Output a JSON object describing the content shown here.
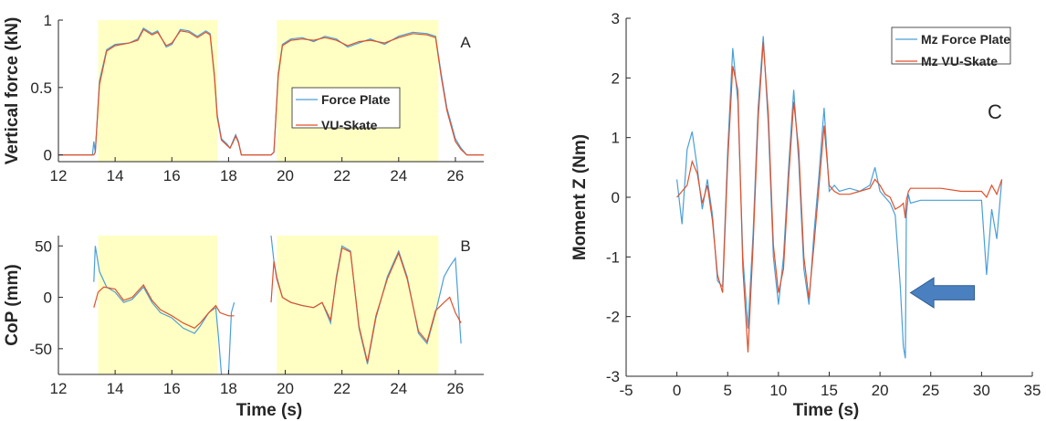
{
  "colors": {
    "force_plate": "#4a9fd8",
    "vu_skate": "#e0502a",
    "highlight": "#ffffc4",
    "arrow": "#4a80c0"
  },
  "chart_data": [
    {
      "id": "A",
      "type": "line",
      "panel_label": "A",
      "ylabel": "Vertical force (kN)",
      "xlim": [
        12,
        27
      ],
      "ylim": [
        -0.05,
        1
      ],
      "xticks": [
        "12",
        "14",
        "16",
        "18",
        "20",
        "22",
        "24",
        "26"
      ],
      "yticks": [
        "0",
        "0.5",
        "1"
      ],
      "highlight_intervals": [
        [
          13.4,
          17.6
        ],
        [
          19.7,
          25.4
        ]
      ],
      "legend": {
        "entries": [
          "Force Plate",
          "VU-Skate"
        ],
        "placement": "center-right"
      },
      "series": [
        {
          "name": "Force Plate",
          "x": [
            12,
            13.2,
            13.25,
            13.3,
            13.45,
            13.7,
            14.0,
            14.5,
            14.8,
            15.0,
            15.3,
            15.5,
            15.8,
            16.0,
            16.3,
            16.6,
            16.9,
            17.2,
            17.35,
            17.5,
            17.6,
            17.75,
            17.85,
            17.95,
            18.05,
            18.15,
            18.25,
            18.35,
            18.45,
            18.6,
            19.0,
            19.5,
            19.6,
            19.75,
            19.9,
            20.2,
            20.6,
            21.0,
            21.4,
            21.8,
            22.2,
            22.6,
            23.0,
            23.5,
            24.0,
            24.5,
            25.0,
            25.3,
            25.5,
            25.7,
            26.0,
            26.2,
            26.4,
            27
          ],
          "y": [
            0,
            0,
            0.1,
            0.02,
            0.55,
            0.78,
            0.82,
            0.83,
            0.86,
            0.94,
            0.9,
            0.92,
            0.8,
            0.82,
            0.93,
            0.92,
            0.88,
            0.92,
            0.9,
            0.6,
            0.3,
            0.12,
            0.1,
            0.08,
            0.05,
            0.1,
            0.15,
            0.1,
            0.0,
            0.0,
            0.0,
            0.0,
            0.02,
            0.6,
            0.82,
            0.86,
            0.87,
            0.84,
            0.88,
            0.86,
            0.8,
            0.83,
            0.86,
            0.82,
            0.88,
            0.91,
            0.9,
            0.88,
            0.6,
            0.35,
            0.12,
            0.05,
            0.0,
            0.0
          ]
        },
        {
          "name": "VU-Skate",
          "x": [
            12,
            13.25,
            13.3,
            13.45,
            13.7,
            14.0,
            14.5,
            14.8,
            15.0,
            15.3,
            15.5,
            15.8,
            16.0,
            16.3,
            16.6,
            16.9,
            17.2,
            17.35,
            17.5,
            17.6,
            17.75,
            17.85,
            17.95,
            18.05,
            18.15,
            18.25,
            18.35,
            18.45,
            18.6,
            19.0,
            19.5,
            19.6,
            19.75,
            19.9,
            20.2,
            20.6,
            21.0,
            21.4,
            21.8,
            22.2,
            22.6,
            23.0,
            23.5,
            24.0,
            24.5,
            25.0,
            25.3,
            25.5,
            25.7,
            26.0,
            26.2,
            26.4,
            27
          ],
          "y": [
            0,
            0,
            0.02,
            0.52,
            0.77,
            0.81,
            0.83,
            0.85,
            0.93,
            0.89,
            0.91,
            0.81,
            0.83,
            0.92,
            0.91,
            0.87,
            0.91,
            0.89,
            0.58,
            0.28,
            0.11,
            0.09,
            0.07,
            0.05,
            0.09,
            0.14,
            0.09,
            0.0,
            0.0,
            0.0,
            0.0,
            0.02,
            0.58,
            0.81,
            0.85,
            0.86,
            0.85,
            0.87,
            0.85,
            0.81,
            0.84,
            0.85,
            0.83,
            0.87,
            0.9,
            0.89,
            0.87,
            0.58,
            0.33,
            0.1,
            0.04,
            0.0,
            0.0
          ]
        }
      ]
    },
    {
      "id": "B",
      "type": "line",
      "panel_label": "B",
      "xlabel": "Time (s)",
      "ylabel": "CoP (mm)",
      "xlim": [
        12,
        27
      ],
      "ylim": [
        -75,
        60
      ],
      "xticks": [
        "12",
        "14",
        "16",
        "18",
        "20",
        "22",
        "24",
        "26"
      ],
      "yticks": [
        "-50",
        "0",
        "50"
      ],
      "highlight_intervals": [
        [
          13.4,
          17.6
        ],
        [
          19.7,
          25.4
        ]
      ],
      "series": [
        {
          "name": "Force Plate",
          "segments": [
            {
              "x": [
                13.25,
                13.3,
                13.45,
                13.7,
                14.0,
                14.3,
                14.6,
                15.0,
                15.3,
                15.6,
                16.0,
                16.4,
                16.8,
                17.0,
                17.3,
                17.55,
                17.65,
                17.75
              ],
              "y": [
                15,
                50,
                25,
                10,
                5,
                -5,
                -2,
                10,
                -5,
                -15,
                -20,
                -30,
                -35,
                -28,
                -15,
                -10,
                -40,
                -75
              ]
            },
            {
              "x": [
                18.0,
                18.1,
                18.2
              ],
              "y": [
                -75,
                -15,
                -5
              ]
            },
            {
              "x": [
                19.5,
                19.6,
                19.7,
                19.9,
                20.2,
                20.6,
                21.0,
                21.3,
                21.6,
                21.8,
                22.0,
                22.3,
                22.6,
                22.9,
                23.2,
                23.6,
                24.0,
                24.3,
                24.7,
                25.0,
                25.3,
                25.6,
                25.8,
                26.0,
                26.2
              ],
              "y": [
                60,
                35,
                20,
                0,
                -5,
                -8,
                -10,
                -5,
                -25,
                20,
                50,
                45,
                -30,
                -65,
                -20,
                20,
                45,
                20,
                -35,
                -45,
                -15,
                20,
                30,
                38,
                -45
              ]
            }
          ]
        },
        {
          "name": "VU-Skate",
          "segments": [
            {
              "x": [
                13.25,
                13.4,
                13.6,
                14.0,
                14.3,
                14.6,
                15.0,
                15.3,
                15.6,
                16.0,
                16.4,
                16.8,
                17.0,
                17.3,
                17.55,
                17.7,
                18.0,
                18.2
              ],
              "y": [
                -10,
                5,
                10,
                8,
                -3,
                0,
                12,
                -3,
                -12,
                -18,
                -25,
                -30,
                -25,
                -15,
                -8,
                -15,
                -18,
                -18
              ]
            },
            {
              "x": [
                19.5,
                19.6,
                19.7,
                19.9,
                20.2,
                20.6,
                21.0,
                21.3,
                21.6,
                21.8,
                22.0,
                22.3,
                22.6,
                22.9,
                23.2,
                23.6,
                24.0,
                24.3,
                24.7,
                25.0,
                25.3,
                25.6,
                25.8,
                26.0,
                26.2
              ],
              "y": [
                -5,
                35,
                18,
                0,
                -5,
                -8,
                -10,
                -5,
                -22,
                18,
                48,
                44,
                -28,
                -63,
                -18,
                18,
                43,
                18,
                -33,
                -43,
                -13,
                -5,
                0,
                -15,
                -25
              ]
            }
          ]
        }
      ]
    },
    {
      "id": "C",
      "type": "line",
      "panel_label": "C",
      "xlabel": "Time (s)",
      "ylabel": "Moment Z (Nm)",
      "xlim": [
        -5,
        35
      ],
      "ylim": [
        -3,
        3
      ],
      "xticks": [
        "-5",
        "0",
        "5",
        "10",
        "15",
        "20",
        "25",
        "30",
        "35"
      ],
      "yticks": [
        "-3",
        "-2",
        "-1",
        "0",
        "1",
        "2",
        "3"
      ],
      "legend": {
        "entries": [
          "Mz Force Plate",
          "Mz VU-Skate"
        ],
        "placement": "top-right"
      },
      "annotation": "arrow pointing at Force Plate spike near 22.5 s",
      "series": [
        {
          "name": "Mz Force Plate",
          "x": [
            0,
            0.5,
            1.0,
            1.5,
            2.0,
            2.5,
            3.0,
            3.5,
            4.0,
            4.5,
            5.0,
            5.5,
            6.0,
            6.5,
            7.0,
            7.5,
            8.0,
            8.5,
            9.0,
            9.5,
            10.0,
            10.5,
            11.0,
            11.5,
            12.0,
            12.5,
            13.0,
            13.5,
            14.0,
            14.5,
            15.0,
            15.5,
            16.0,
            17.0,
            18.0,
            19.0,
            19.5,
            20.0,
            20.5,
            21.0,
            21.5,
            22.0,
            22.3,
            22.5,
            22.6,
            22.8,
            23.0,
            24.0,
            26.0,
            28.0,
            30.0,
            30.5,
            31.0,
            31.5,
            32.0
          ],
          "y": [
            0.3,
            -0.45,
            0.8,
            1.1,
            0.5,
            -0.2,
            0.3,
            -0.3,
            -1.4,
            -1.5,
            0.8,
            2.5,
            1.6,
            -1.0,
            -2.2,
            -0.6,
            1.5,
            2.7,
            1.2,
            -1.0,
            -1.8,
            -1.0,
            0.5,
            1.8,
            0.6,
            -1.2,
            -1.8,
            -0.6,
            0.4,
            1.5,
            0.1,
            0.2,
            0.1,
            0.15,
            0.1,
            0.2,
            0.5,
            0.1,
            0.0,
            -0.1,
            -0.3,
            -1.5,
            -2.5,
            -2.7,
            -0.3,
            0.05,
            -0.1,
            -0.05,
            -0.05,
            -0.05,
            -0.05,
            -1.3,
            -0.2,
            -0.7,
            0.3
          ]
        },
        {
          "name": "Mz VU-Skate",
          "x": [
            0,
            0.5,
            1.0,
            1.5,
            2.0,
            2.5,
            3.0,
            3.5,
            4.0,
            4.5,
            5.0,
            5.5,
            6.0,
            6.5,
            7.0,
            7.5,
            8.0,
            8.5,
            9.0,
            9.5,
            10.0,
            10.5,
            11.0,
            11.5,
            12.0,
            12.5,
            13.0,
            13.5,
            14.0,
            14.5,
            15.0,
            15.5,
            16.0,
            17.0,
            18.0,
            19.0,
            19.5,
            20.0,
            20.5,
            21.0,
            21.5,
            22.0,
            22.3,
            22.5,
            22.6,
            22.8,
            23.0,
            24.0,
            26.0,
            28.0,
            30.0,
            30.5,
            31.0,
            31.5,
            32.0
          ],
          "y": [
            0.0,
            0.1,
            0.2,
            0.6,
            0.4,
            -0.1,
            0.2,
            -0.4,
            -1.3,
            -1.6,
            0.6,
            2.2,
            1.8,
            -1.2,
            -2.6,
            -0.8,
            1.3,
            2.6,
            1.4,
            -0.8,
            -1.6,
            -1.2,
            0.3,
            1.6,
            0.8,
            -1.0,
            -1.7,
            -0.8,
            0.2,
            1.2,
            0.2,
            0.1,
            0.05,
            0.05,
            0.1,
            0.15,
            0.3,
            0.2,
            0.05,
            0.0,
            -0.2,
            -0.15,
            -0.1,
            -0.35,
            -0.05,
            0.1,
            0.15,
            0.15,
            0.15,
            0.1,
            0.1,
            0.0,
            0.2,
            0.05,
            0.3
          ]
        }
      ]
    }
  ]
}
